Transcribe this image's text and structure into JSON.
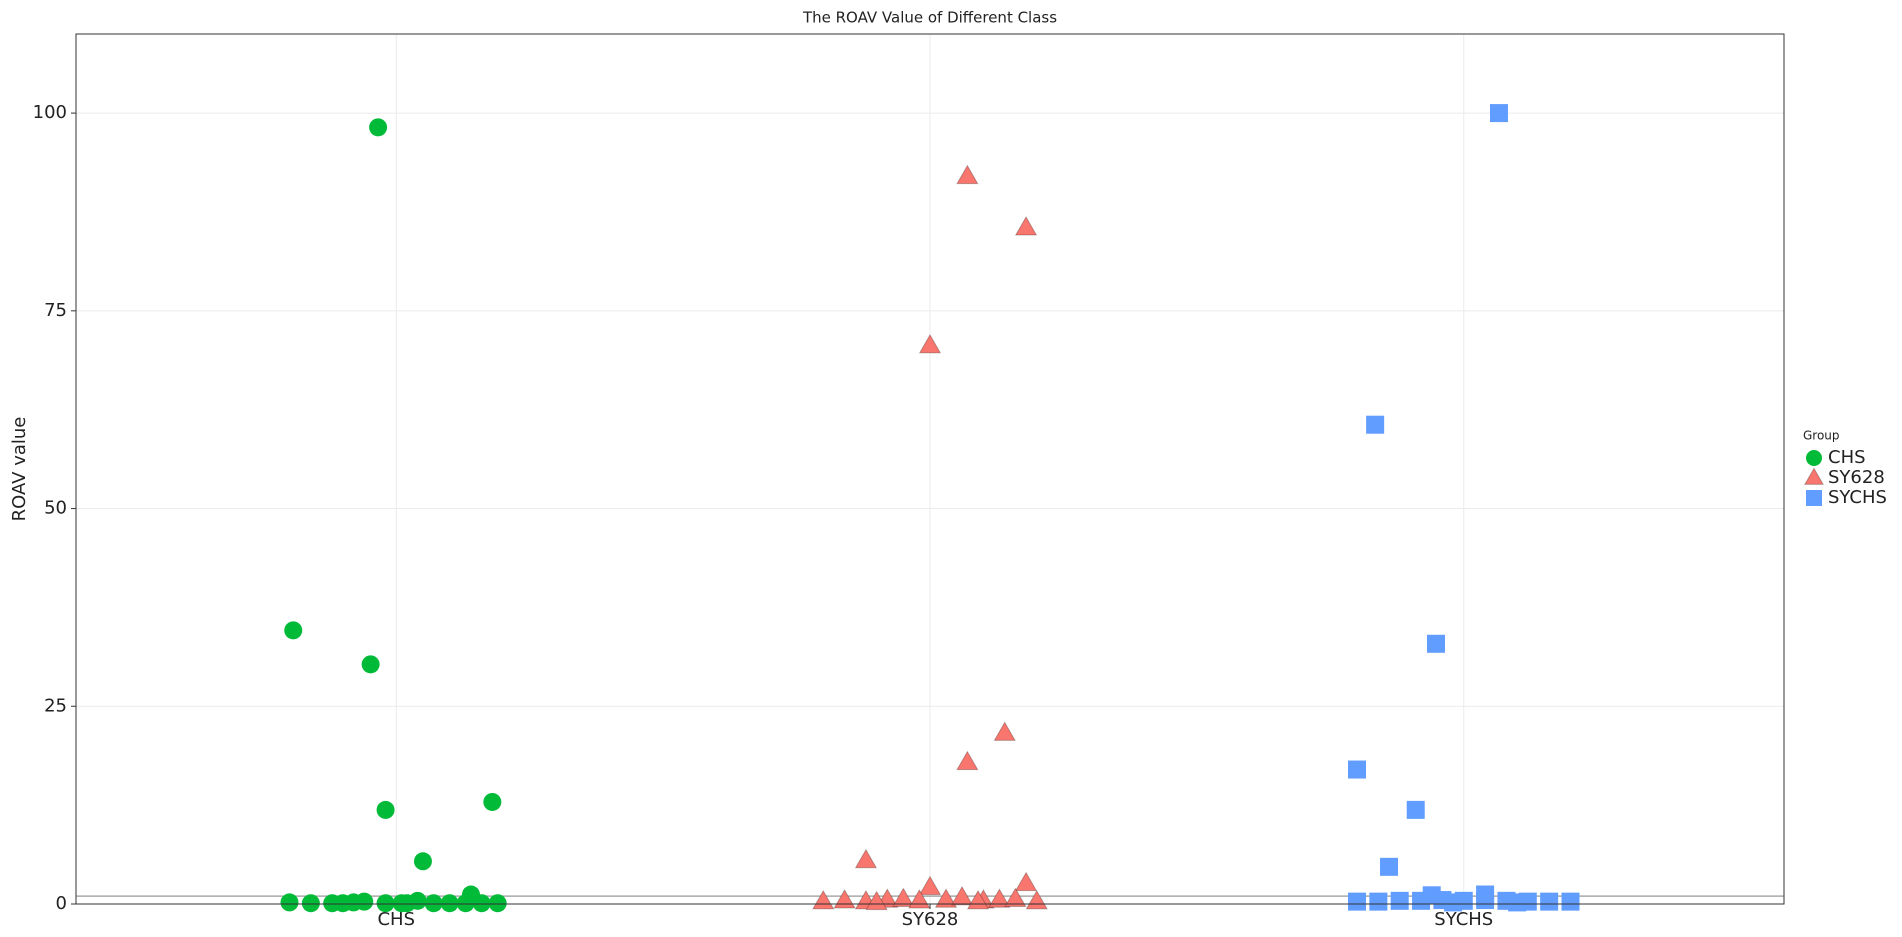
{
  "chart_data": {
    "type": "scatter",
    "title": "The ROAV Value of Different Class",
    "y_label": "ROAV value",
    "legend_title": "Group",
    "legend": "right",
    "grid": true,
    "xlim": [
      0.4,
      3.6
    ],
    "xticks": [
      {
        "value": 1,
        "label": "CHS"
      },
      {
        "value": 2,
        "label": "SY628"
      },
      {
        "value": 3,
        "label": "SYCHS"
      }
    ],
    "ylim": [
      0,
      110
    ],
    "yticks": [
      0,
      25,
      50,
      75,
      100
    ],
    "hline": 1,
    "series": [
      {
        "name": "CHS",
        "color": "#00ba38",
        "marker": "circle",
        "x": [
          0.966,
          0.807,
          0.952,
          0.98,
          1.18,
          1.05,
          1.14,
          0.8,
          0.84,
          0.88,
          0.92,
          0.94,
          0.98,
          1.01,
          1.04,
          1.07,
          1.1,
          1.13,
          1.16,
          1.19,
          0.9,
          1.02
        ],
        "values": [
          98.2,
          34.6,
          30.3,
          11.9,
          12.9,
          5.4,
          1.2,
          0.2,
          0.1,
          0.1,
          0.2,
          0.3,
          0.1,
          0.1,
          0.4,
          0.1,
          0.1,
          0.1,
          0.1,
          0.1,
          0.1,
          0.1
        ]
      },
      {
        "name": "SY628",
        "color": "#f8766d",
        "marker": "triangle",
        "x": [
          2.07,
          2.18,
          2.0,
          2.14,
          2.07,
          1.88,
          2.0,
          2.18,
          1.8,
          1.84,
          1.88,
          1.92,
          1.95,
          1.98,
          2.03,
          2.06,
          2.1,
          2.13,
          2.16,
          2.2,
          1.9,
          2.09
        ],
        "values": [
          92.0,
          85.5,
          70.6,
          21.6,
          17.9,
          5.5,
          2.1,
          2.6,
          0.3,
          0.4,
          0.3,
          0.5,
          0.6,
          0.4,
          0.5,
          0.8,
          0.4,
          0.5,
          0.6,
          0.3,
          0.2,
          0.3
        ]
      },
      {
        "name": "SYCHS",
        "color": "#619cff",
        "marker": "square",
        "x": [
          3.066,
          2.834,
          2.948,
          2.8,
          2.91,
          2.86,
          2.94,
          3.04,
          2.8,
          2.84,
          2.88,
          2.92,
          2.96,
          3.0,
          3.04,
          3.08,
          3.12,
          3.16,
          3.2,
          2.98,
          3.1
        ],
        "values": [
          100,
          60.6,
          32.9,
          17.0,
          11.9,
          4.7,
          1.1,
          1.2,
          0.3,
          0.3,
          0.4,
          0.4,
          0.5,
          0.4,
          0.5,
          0.4,
          0.3,
          0.3,
          0.3,
          0.2,
          0.2
        ]
      }
    ]
  }
}
